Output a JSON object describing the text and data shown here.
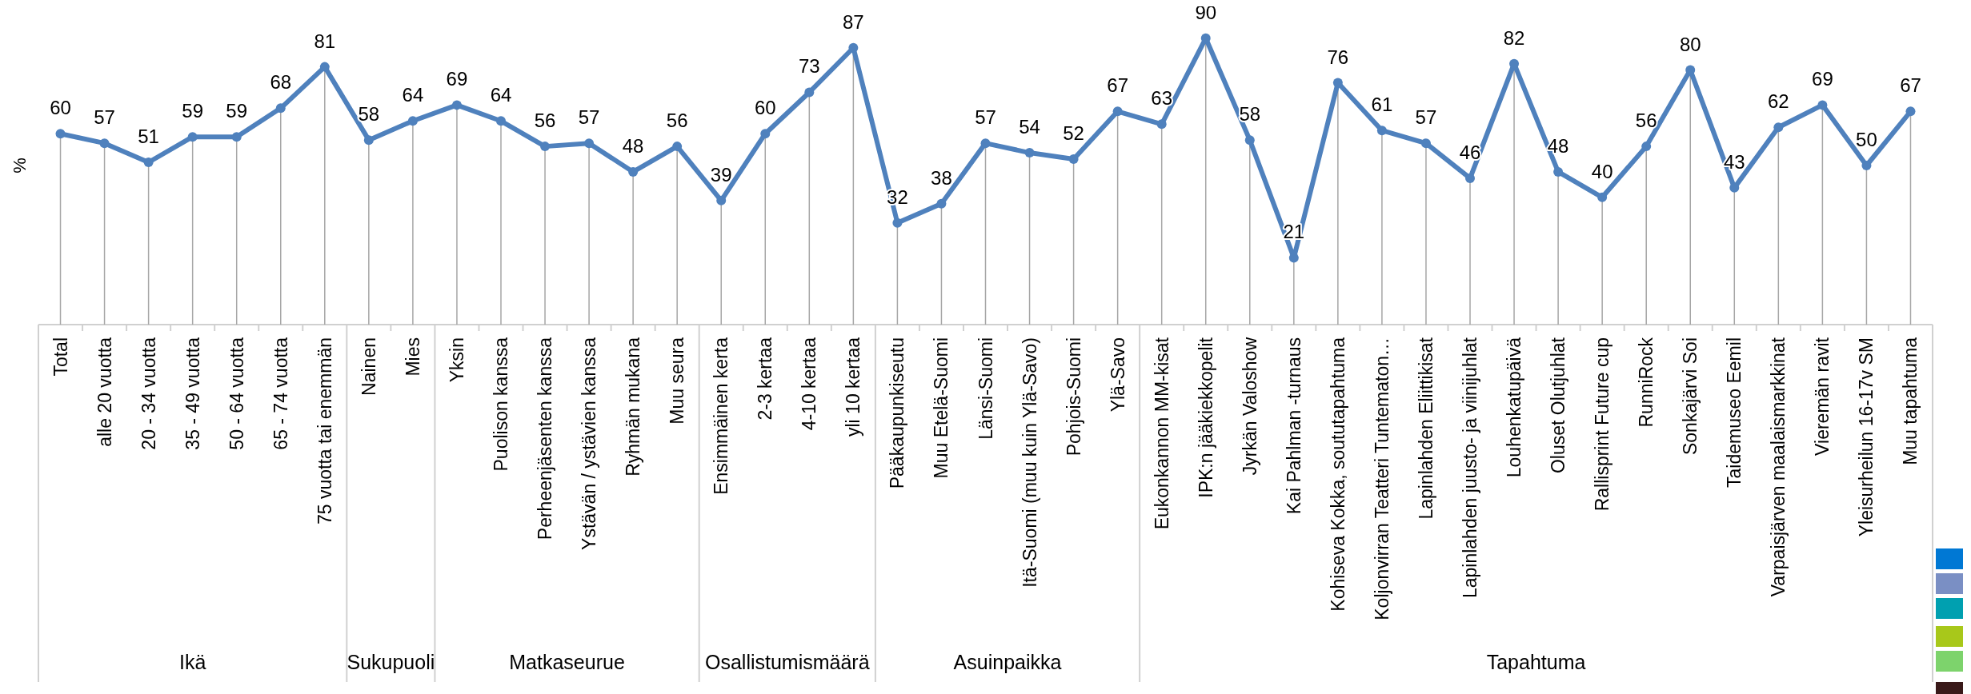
{
  "chart_data": {
    "type": "line",
    "ylabel": "%",
    "data_labels": true,
    "marker": "circle",
    "line_style": "solid",
    "grid": "x",
    "tick_labels": "x",
    "categories": [
      "Total",
      "alle 20 vuotta",
      "20 - 34 vuotta",
      "35 - 49 vuotta",
      "50 - 64 vuotta",
      "65 - 74 vuotta",
      "75 vuotta tai enemmän",
      "Nainen",
      "Mies",
      "Yksin",
      "Puolison kanssa",
      "Perheenjäsenten kanssa",
      "Ystävän / ystävien kanssa",
      "Ryhmän mukana",
      "Muu seura",
      "Ensimmäinen kerta",
      "2-3 kertaa",
      "4-10 kertaa",
      "yli 10 kertaa",
      "Pääkaupunkiseutu",
      "Muu Etelä-Suomi",
      "Länsi-Suomi",
      "Itä-Suomi (muu kuin Ylä-Savo)",
      "Pohjois-Suomi",
      "Ylä-Savo",
      "Eukonkannon MM-kisat",
      "IPK:n jääkiekkopelit",
      "Jyrkän Valoshow",
      "Kai Pahlman -turnaus",
      "Kohiseva Kokka, soututapahtuma",
      "Koljonvirran Teatteri Tuntematon…",
      "Lapinlahden Eliittikisat",
      "Lapinlahden juusto- ja viinijuhlat",
      "Louhenkatupäivä",
      "Oluset Olutjuhlat",
      "Rallisprint Future cup",
      "RunniRock",
      "Sonkajärvi Soi",
      "Taidemuseo Eemil",
      "Varpaisjärven maalaismarkkinat",
      "Vieremän ravit",
      "Yleisurheilun 16-17v SM",
      "Muu tapahtuma"
    ],
    "series": [
      {
        "color": "#4f81bd",
        "values": [
          60,
          57,
          51,
          59,
          59,
          68,
          81,
          58,
          64,
          69,
          64,
          56,
          57,
          48,
          56,
          39,
          60,
          73,
          87,
          32,
          38,
          57,
          54,
          52,
          67,
          63,
          90,
          58,
          21,
          76,
          61,
          57,
          46,
          82,
          48,
          40,
          56,
          80,
          43,
          62,
          69,
          50,
          67
        ]
      }
    ],
    "annotations": [
      "Ikä",
      "Sukupuoli",
      "Matkaseurue",
      "Osallistumismäärä",
      "Asuinpaikka",
      "Tapahtuma"
    ]
  }
}
